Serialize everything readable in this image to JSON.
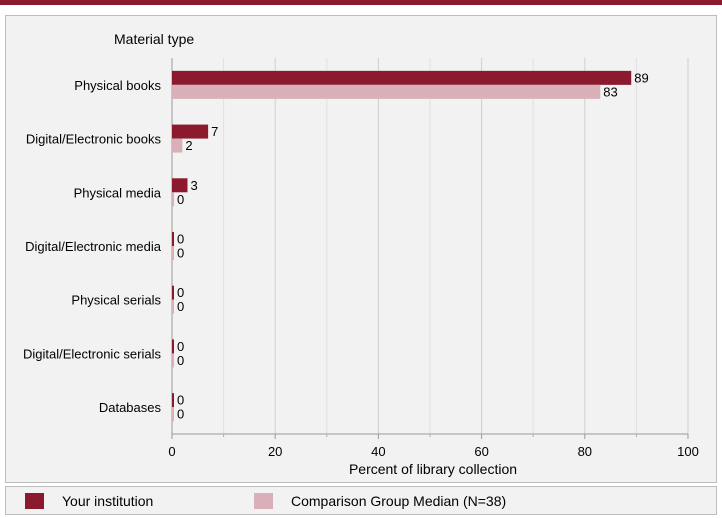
{
  "colors": {
    "your_institution": "#8b1a2f",
    "comparison": "#d9b0b7",
    "header_bar": "#8b1a2f",
    "panel_background": "#f2f2f2",
    "grid": "#d0d0d0"
  },
  "chart_data": {
    "type": "bar",
    "orientation": "horizontal",
    "category_axis_title": "Material type",
    "categories": [
      "Physical books",
      "Digital/Electronic books",
      "Physical media",
      "Digital/Electronic media",
      "Physical serials",
      "Digital/Electronic serials",
      "Databases"
    ],
    "series": [
      {
        "name": "Your institution",
        "values": [
          89,
          7,
          3,
          0,
          0,
          0,
          0
        ]
      },
      {
        "name": "Comparison Group Median (N=38)",
        "values": [
          83,
          2,
          0,
          0,
          0,
          0,
          0
        ]
      }
    ],
    "xlabel": "Percent of library collection",
    "xlim": [
      0,
      100
    ],
    "xticks": [
      "0",
      "20",
      "40",
      "60",
      "80",
      "100"
    ],
    "grid": true,
    "legend_position": "bottom"
  },
  "legend": {
    "items": [
      {
        "label": "Your institution"
      },
      {
        "label": "Comparison Group Median (N=38)"
      }
    ]
  }
}
